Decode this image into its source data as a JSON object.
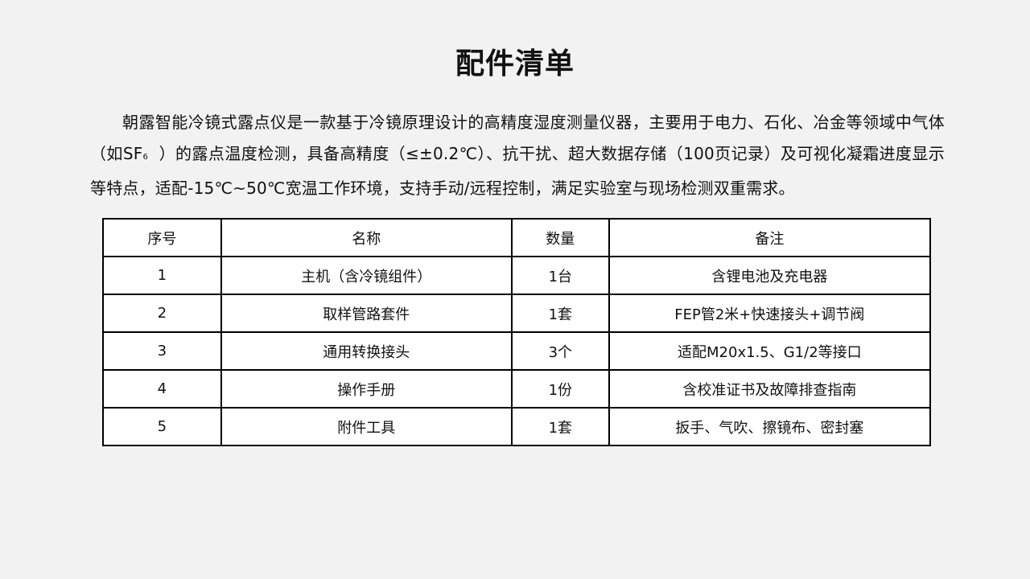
{
  "title": "配件清单",
  "paragraph": {
    "part1": "朝露智能冷镜式露点仪是一款基于冷镜原理设计的高精度湿度测量仪器，主要用于电力、石化、冶金等领域中气体（如SF",
    "subscript": "6",
    "part2": "  ）的露点温度检测，具备高精度（≤±0.2℃）、抗干扰、超大数据存储（100页记录）及可视化凝霜进度显示等特点，适配-15℃~50℃宽温工作环境，支持手动/远程控制，满足实验室与现场检测双重需求。"
  },
  "table": {
    "headers": [
      "序号",
      "名称",
      "数量",
      "备注"
    ],
    "rows": [
      [
        "1",
        "主机（含冷镜组件）",
        "1台",
        "含锂电池及充电器"
      ],
      [
        "2",
        "取样管路套件",
        "1套",
        "FEP管2米+快速接头+调节阀"
      ],
      [
        "3",
        "通用转换接头",
        "3个",
        "适配M20x1.5、G1/2等接口"
      ],
      [
        "4",
        "操作手册",
        "1份",
        "含校准证书及故障排查指南"
      ],
      [
        "5",
        "附件工具",
        "1套",
        "扳手、气吹、擦镜布、密封塞"
      ]
    ]
  }
}
